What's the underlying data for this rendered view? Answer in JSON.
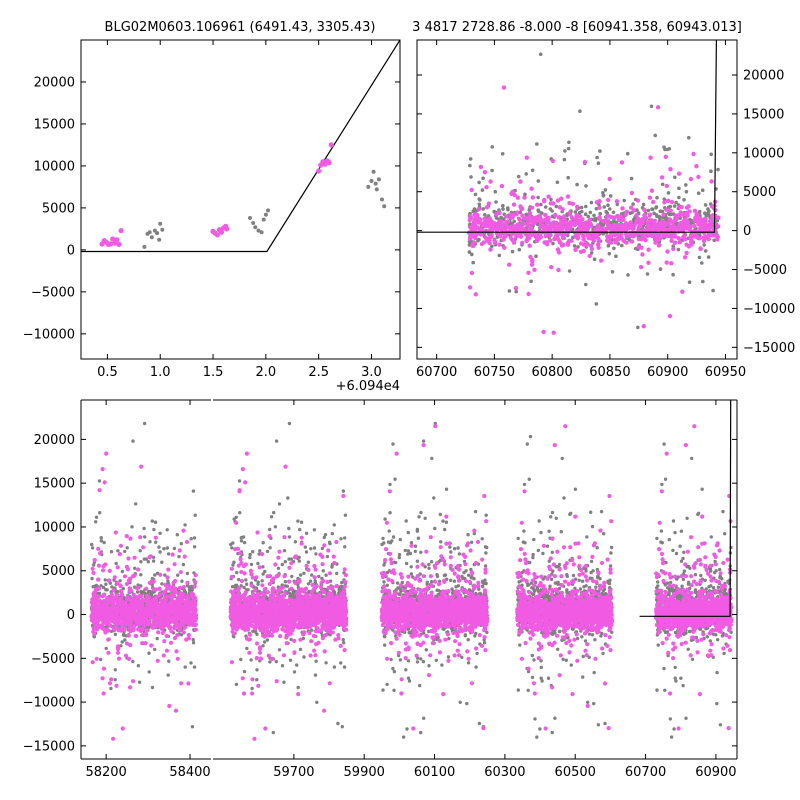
{
  "figure": {
    "title_left": "BLG02M0603.106961 (6491.43, 3305.43)",
    "title_right": "3 4817 2728.86 -8.000 -8 [60941.358, 60943.013]"
  },
  "colors": {
    "gray_series": "#808080",
    "magenta_series": "#f15be3",
    "model_line": "#000000",
    "axes": "#000000"
  },
  "chart_data": [
    {
      "name": "zoom-panel",
      "type": "scatter",
      "xlim": [
        0.25,
        3.27
      ],
      "ylim": [
        -13000,
        25000
      ],
      "xticks": [
        0.5,
        1.0,
        1.5,
        2.0,
        2.5,
        3.0
      ],
      "xtick_labels": [
        "0.5",
        "1.0",
        "1.5",
        "2.0",
        "2.5",
        "3.0"
      ],
      "yticks": [
        -10000,
        -5000,
        0,
        5000,
        10000,
        15000,
        20000
      ],
      "ytick_labels": [
        "−10000",
        "−5000",
        "0",
        "5000",
        "10000",
        "15000",
        "20000"
      ],
      "offset_label": "+6.094e4",
      "series": [
        {
          "name": "gray",
          "points": [
            [
              0.85,
              350
            ],
            [
              0.88,
              1900
            ],
            [
              0.9,
              2100
            ],
            [
              0.92,
              1500
            ],
            [
              0.95,
              2300
            ],
            [
              0.97,
              2000
            ],
            [
              0.99,
              1200
            ],
            [
              1.0,
              3100
            ],
            [
              1.02,
              2400
            ],
            [
              1.85,
              3800
            ],
            [
              1.88,
              3200
            ],
            [
              1.9,
              2700
            ],
            [
              1.93,
              2300
            ],
            [
              1.96,
              2100
            ],
            [
              1.98,
              3600
            ],
            [
              2.0,
              4200
            ],
            [
              2.02,
              4700
            ],
            [
              2.97,
              7500
            ],
            [
              3.0,
              8200
            ],
            [
              3.02,
              9300
            ],
            [
              3.04,
              7900
            ],
            [
              3.05,
              7200
            ],
            [
              3.07,
              8400
            ],
            [
              3.1,
              6000
            ],
            [
              3.12,
              5200
            ]
          ]
        },
        {
          "name": "magenta",
          "points": [
            [
              0.45,
              700
            ],
            [
              0.47,
              1100
            ],
            [
              0.49,
              900
            ],
            [
              0.51,
              650
            ],
            [
              0.53,
              700
            ],
            [
              0.55,
              1300
            ],
            [
              0.57,
              800
            ],
            [
              0.59,
              1200
            ],
            [
              0.61,
              650
            ],
            [
              0.63,
              2300
            ],
            [
              1.5,
              2200
            ],
            [
              1.52,
              2000
            ],
            [
              1.54,
              1800
            ],
            [
              1.56,
              2400
            ],
            [
              1.58,
              2100
            ],
            [
              1.6,
              2600
            ],
            [
              1.62,
              2800
            ],
            [
              1.63,
              2500
            ],
            [
              2.5,
              9400
            ],
            [
              2.52,
              10100
            ],
            [
              2.54,
              10500
            ],
            [
              2.56,
              10200
            ],
            [
              2.58,
              10600
            ],
            [
              2.6,
              10400
            ],
            [
              2.62,
              12500
            ]
          ]
        }
      ],
      "model": [
        [
          0.25,
          -200
        ],
        [
          2.01,
          -200
        ],
        [
          3.27,
          25000
        ]
      ]
    },
    {
      "name": "season-panel",
      "type": "scatter",
      "xlim": [
        60683,
        60960
      ],
      "ylim": [
        -16500,
        24500
      ],
      "xticks": [
        60700,
        60750,
        60800,
        60850,
        60900,
        60950
      ],
      "xtick_labels": [
        "60700",
        "60750",
        "60800",
        "60850",
        "60900",
        "60950"
      ],
      "yticks": [
        -15000,
        -10000,
        -5000,
        0,
        5000,
        10000,
        15000,
        20000
      ],
      "ytick_labels": [
        "−15000",
        "−10000",
        "−5000",
        "0",
        "5000",
        "10000",
        "15000",
        "20000"
      ],
      "data_range": [
        60728,
        60944
      ],
      "model": [
        [
          60683,
          -200
        ],
        [
          60940.5,
          -200
        ],
        [
          60942.2,
          24500
        ]
      ],
      "markers": {
        "model_start_x": 60683
      }
    },
    {
      "name": "full-panel",
      "type": "scatter",
      "ylim": [
        -16500,
        24500
      ],
      "segments": [
        {
          "xlim": [
            58140,
            58450
          ],
          "xticks": [
            58200,
            58400
          ],
          "xtick_labels": [
            "58200",
            "58400"
          ],
          "data_range": [
            58165,
            58415
          ]
        },
        {
          "xlim": [
            59470,
            60960
          ],
          "xticks": [
            59700,
            59900,
            60100,
            60300,
            60500,
            60700,
            60900
          ],
          "xtick_labels": [
            "59700",
            "59900",
            "60100",
            "60300",
            "60500",
            "60700",
            "60900"
          ],
          "data_ranges": [
            [
              59520,
              59850
            ],
            [
              59950,
              60250
            ],
            [
              60335,
              60605
            ],
            [
              60730,
              60944
            ]
          ]
        }
      ],
      "yticks": [
        -15000,
        -10000,
        -5000,
        0,
        5000,
        10000,
        15000,
        20000
      ],
      "ytick_labels": [
        "−15000",
        "−10000",
        "−5000",
        "0",
        "5000",
        "10000",
        "15000",
        "20000"
      ],
      "model": [
        [
          60683,
          -200
        ],
        [
          60940.5,
          -200
        ],
        [
          60942.2,
          24500
        ]
      ]
    }
  ]
}
